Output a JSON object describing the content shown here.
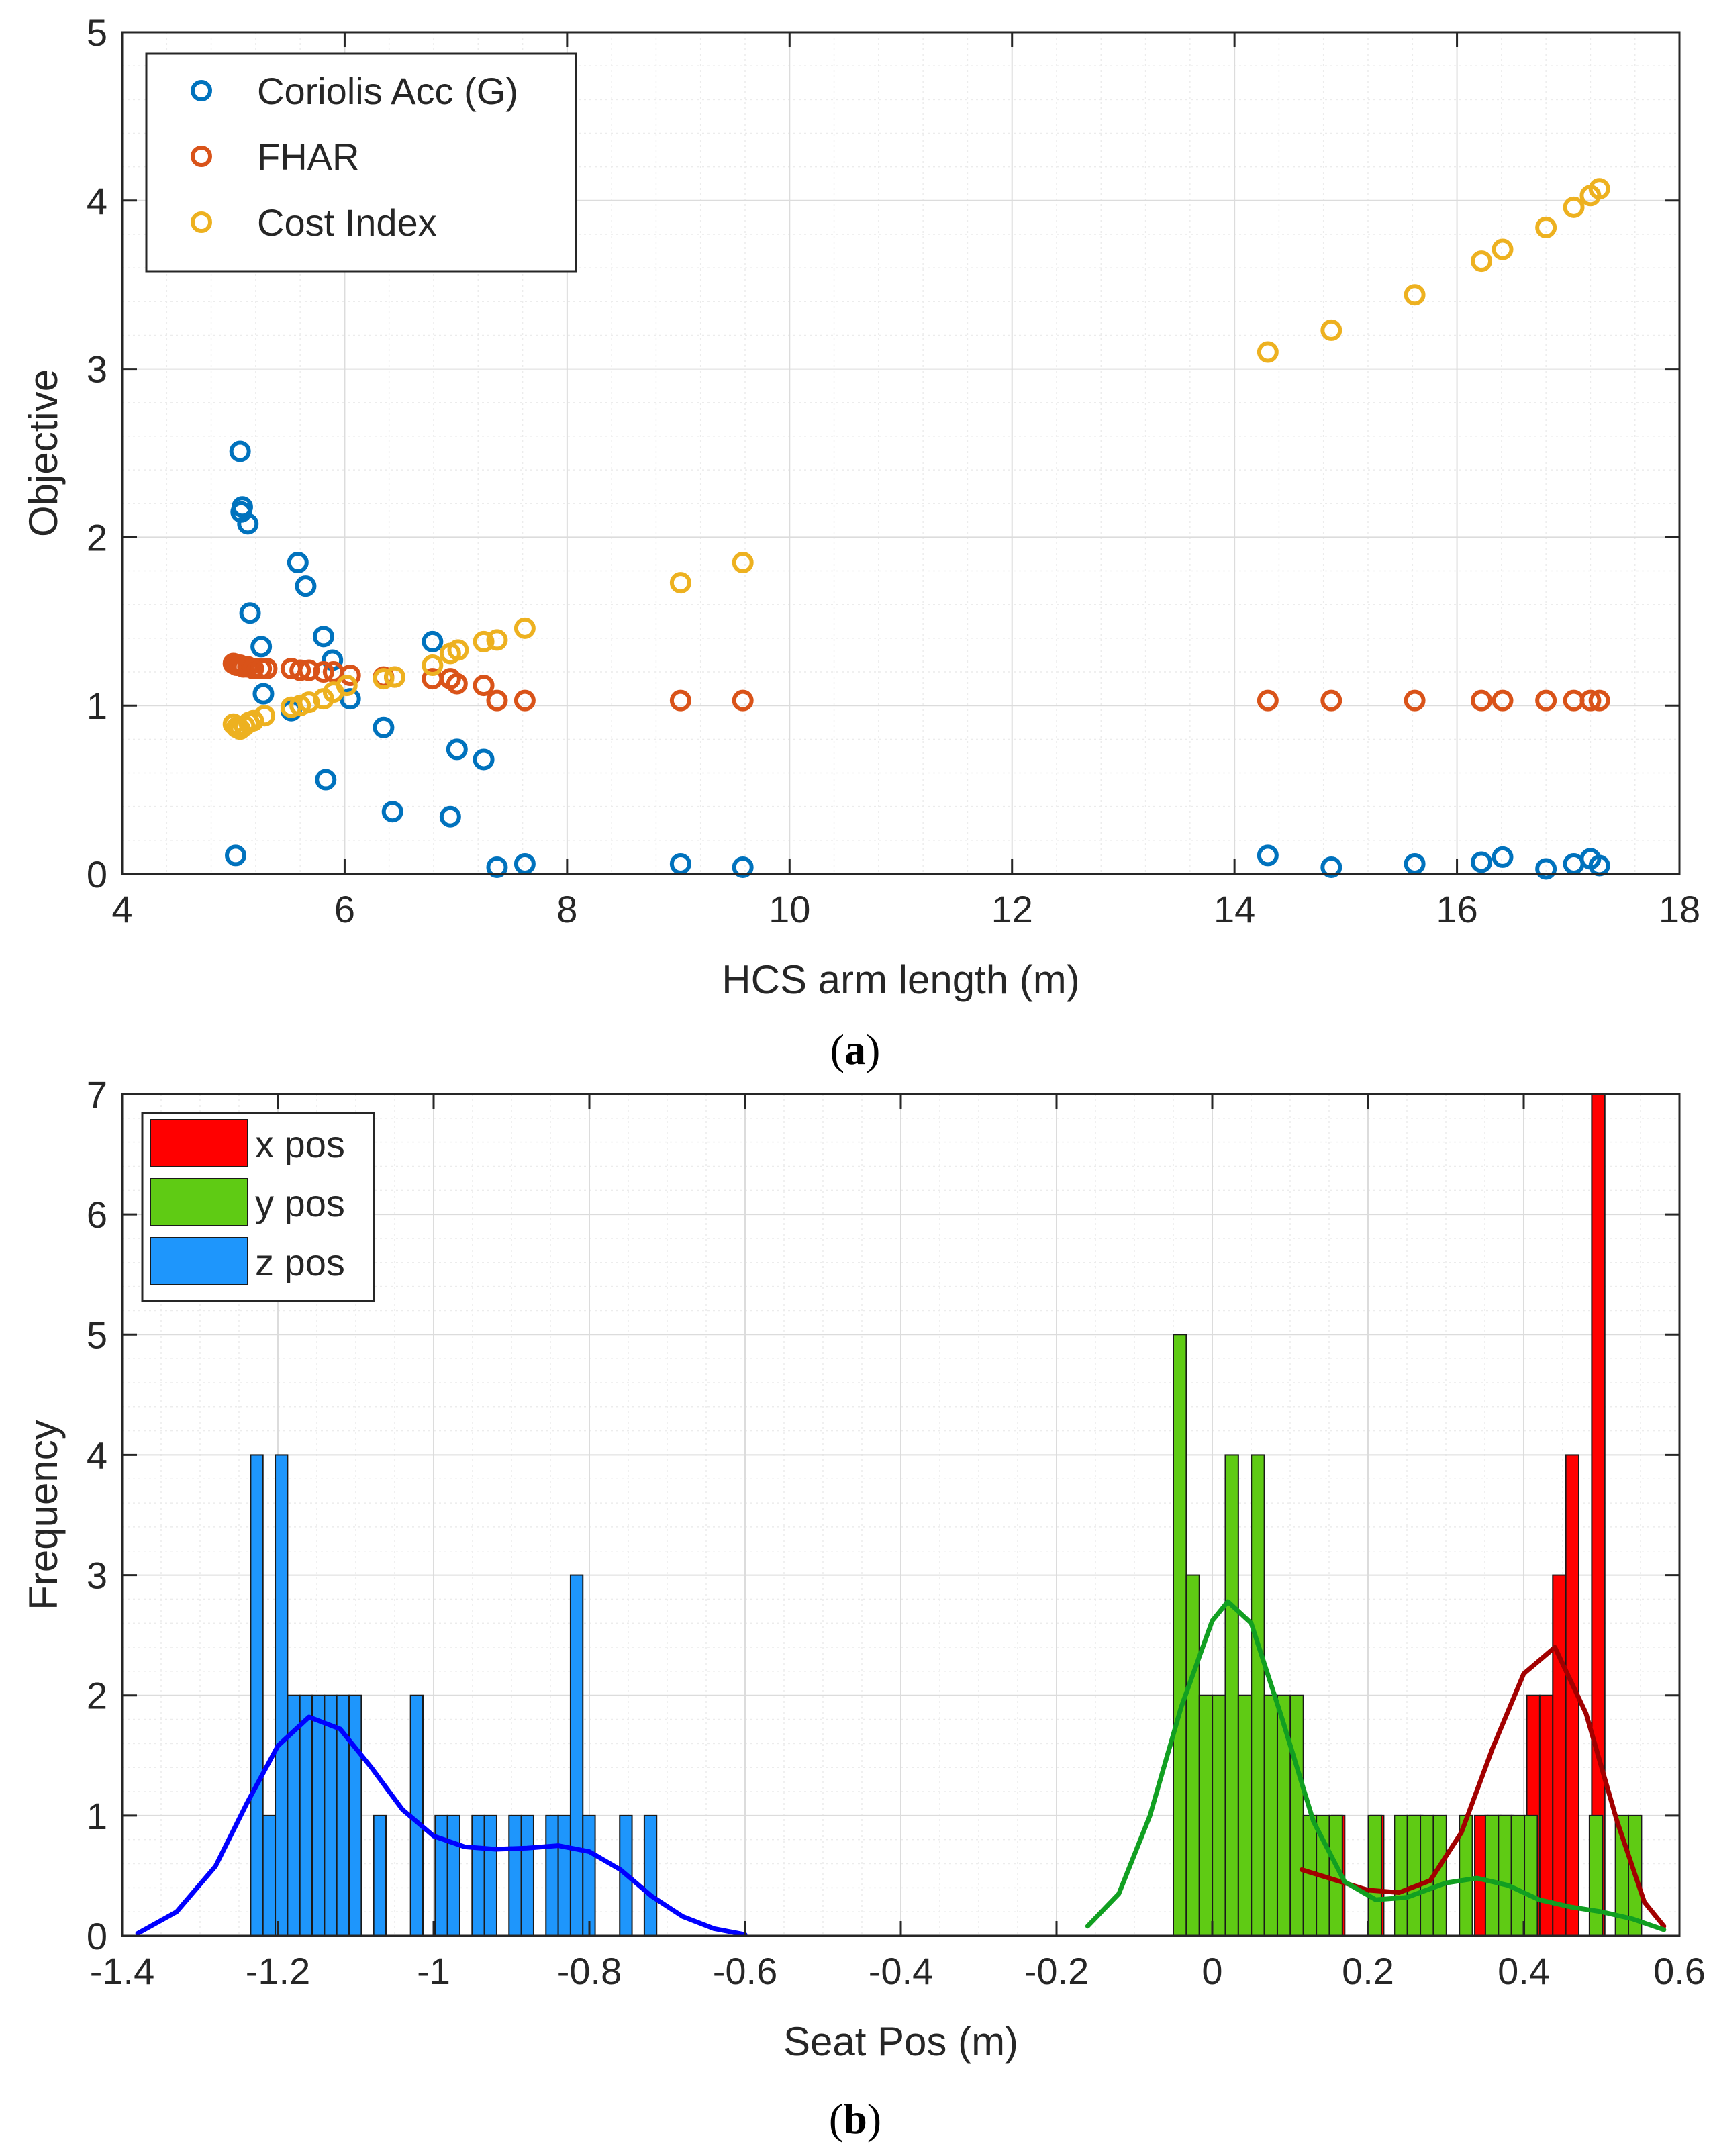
{
  "chart_data": [
    {
      "panel": "a",
      "type": "scatter",
      "xlabel": "HCS arm length (m)",
      "ylabel": "Objective",
      "xlim": [
        4,
        18
      ],
      "ylim": [
        0,
        5
      ],
      "xticks": [
        4,
        6,
        8,
        10,
        12,
        14,
        16,
        18
      ],
      "yticks": [
        0,
        1,
        2,
        3,
        4,
        5
      ],
      "grid": "major and minor",
      "legend_position": "top-left",
      "series": [
        {
          "name": "Coriolis Acc (G)",
          "color": "#0072BD",
          "points": [
            [
              5.02,
              0.11
            ],
            [
              5.06,
              2.51
            ],
            [
              5.08,
              2.18
            ],
            [
              5.07,
              2.15
            ],
            [
              5.13,
              2.08
            ],
            [
              5.15,
              1.55
            ],
            [
              5.25,
              1.35
            ],
            [
              5.27,
              1.07
            ],
            [
              5.52,
              0.97
            ],
            [
              5.58,
              1.85
            ],
            [
              5.65,
              1.71
            ],
            [
              5.81,
              1.41
            ],
            [
              5.83,
              0.56
            ],
            [
              5.89,
              1.27
            ],
            [
              6.05,
              1.04
            ],
            [
              6.35,
              0.87
            ],
            [
              6.43,
              0.37
            ],
            [
              6.79,
              1.38
            ],
            [
              6.95,
              0.34
            ],
            [
              7.01,
              0.74
            ],
            [
              7.25,
              0.68
            ],
            [
              7.37,
              0.04
            ],
            [
              7.62,
              0.06
            ],
            [
              9.02,
              0.06
            ],
            [
              9.58,
              0.04
            ],
            [
              14.3,
              0.11
            ],
            [
              14.87,
              0.04
            ],
            [
              15.62,
              0.06
            ],
            [
              16.22,
              0.07
            ],
            [
              16.41,
              0.1
            ],
            [
              16.8,
              0.03
            ],
            [
              17.05,
              0.06
            ],
            [
              17.2,
              0.09
            ],
            [
              17.28,
              0.05
            ]
          ]
        },
        {
          "name": "FHAR",
          "color": "#D95319",
          "points": [
            [
              5.0,
              1.25
            ],
            [
              5.03,
              1.24
            ],
            [
              5.06,
              1.24
            ],
            [
              5.09,
              1.23
            ],
            [
              5.13,
              1.23
            ],
            [
              5.18,
              1.22
            ],
            [
              5.25,
              1.22
            ],
            [
              5.3,
              1.22
            ],
            [
              5.52,
              1.22
            ],
            [
              5.6,
              1.21
            ],
            [
              5.68,
              1.21
            ],
            [
              5.81,
              1.2
            ],
            [
              5.9,
              1.2
            ],
            [
              6.05,
              1.18
            ],
            [
              6.35,
              1.17
            ],
            [
              6.45,
              1.17
            ],
            [
              6.79,
              1.16
            ],
            [
              6.95,
              1.16
            ],
            [
              7.01,
              1.13
            ],
            [
              7.25,
              1.12
            ],
            [
              7.37,
              1.03
            ],
            [
              7.62,
              1.03
            ],
            [
              9.02,
              1.03
            ],
            [
              9.58,
              1.03
            ],
            [
              14.3,
              1.03
            ],
            [
              14.87,
              1.03
            ],
            [
              15.62,
              1.03
            ],
            [
              16.22,
              1.03
            ],
            [
              16.41,
              1.03
            ],
            [
              16.8,
              1.03
            ],
            [
              17.05,
              1.03
            ],
            [
              17.2,
              1.03
            ],
            [
              17.28,
              1.03
            ]
          ]
        },
        {
          "name": "Cost Index",
          "color": "#EDB120",
          "points": [
            [
              5.0,
              0.89
            ],
            [
              5.03,
              0.87
            ],
            [
              5.06,
              0.86
            ],
            [
              5.1,
              0.88
            ],
            [
              5.14,
              0.9
            ],
            [
              5.18,
              0.91
            ],
            [
              5.28,
              0.94
            ],
            [
              5.52,
              0.99
            ],
            [
              5.6,
              1.0
            ],
            [
              5.68,
              1.02
            ],
            [
              5.81,
              1.04
            ],
            [
              5.9,
              1.08
            ],
            [
              6.02,
              1.12
            ],
            [
              6.35,
              1.16
            ],
            [
              6.45,
              1.17
            ],
            [
              6.79,
              1.24
            ],
            [
              6.95,
              1.31
            ],
            [
              7.02,
              1.33
            ],
            [
              7.25,
              1.38
            ],
            [
              7.37,
              1.39
            ],
            [
              7.62,
              1.46
            ],
            [
              9.02,
              1.73
            ],
            [
              9.58,
              1.85
            ],
            [
              14.3,
              3.1
            ],
            [
              14.87,
              3.23
            ],
            [
              15.62,
              3.44
            ],
            [
              16.22,
              3.64
            ],
            [
              16.41,
              3.71
            ],
            [
              16.8,
              3.84
            ],
            [
              17.05,
              3.96
            ],
            [
              17.2,
              4.03
            ],
            [
              17.28,
              4.07
            ]
          ]
        }
      ],
      "caption": "(a)"
    },
    {
      "panel": "b",
      "type": "bar",
      "subtype": "histogram with density curves",
      "xlabel": "Seat Pos (m)",
      "ylabel": "Frequency",
      "xlim": [
        -1.4,
        0.6
      ],
      "ylim": [
        0,
        7
      ],
      "xticks": [
        -1.4,
        -1.2,
        -1.0,
        -0.8,
        -0.6,
        -0.4,
        -0.2,
        0,
        0.2,
        0.4,
        0.6
      ],
      "xtick_labels": [
        "-1.4",
        "-1.2",
        "-1",
        "-0.8",
        "-0.6",
        "-0.4",
        "-0.2",
        "0",
        "0.2",
        "0.4",
        "0.6"
      ],
      "yticks": [
        0,
        1,
        2,
        3,
        4,
        5,
        6,
        7
      ],
      "grid": "major and minor",
      "legend_position": "top-left",
      "series": [
        {
          "name": "x pos",
          "color": "#FF0000",
          "curve_color": "#A20000",
          "bin_start": 0.12,
          "bin_width": 0.0167,
          "counts": [
            0,
            0,
            1,
            0,
            0,
            1,
            0,
            0,
            1,
            0,
            0,
            0,
            0,
            1,
            1,
            1,
            0,
            2,
            2,
            3,
            4,
            0,
            7
          ],
          "density_curve": [
            [
              0.115,
              0.55
            ],
            [
              0.15,
              0.48
            ],
            [
              0.2,
              0.38
            ],
            [
              0.24,
              0.36
            ],
            [
              0.28,
              0.46
            ],
            [
              0.32,
              0.86
            ],
            [
              0.36,
              1.56
            ],
            [
              0.4,
              2.18
            ],
            [
              0.44,
              2.4
            ],
            [
              0.48,
              1.85
            ],
            [
              0.52,
              0.95
            ],
            [
              0.555,
              0.28
            ],
            [
              0.58,
              0.08
            ]
          ]
        },
        {
          "name": "y pos",
          "color": "#5FCB14",
          "curve_color": "#119F21",
          "bin_start": -0.05,
          "bin_width": 0.0167,
          "counts": [
            5,
            3,
            2,
            2,
            4,
            2,
            4,
            2,
            2,
            2,
            1,
            1,
            1,
            0,
            0,
            1,
            0,
            1,
            1,
            1,
            1,
            0,
            1,
            0,
            1,
            1,
            1,
            1,
            0,
            0,
            0,
            0,
            1,
            0,
            1,
            1
          ],
          "density_curve": [
            [
              -0.16,
              0.08
            ],
            [
              -0.12,
              0.35
            ],
            [
              -0.08,
              1.0
            ],
            [
              -0.04,
              1.9
            ],
            [
              0.0,
              2.62
            ],
            [
              0.02,
              2.78
            ],
            [
              0.05,
              2.6
            ],
            [
              0.09,
              1.8
            ],
            [
              0.13,
              0.95
            ],
            [
              0.17,
              0.45
            ],
            [
              0.21,
              0.3
            ],
            [
              0.25,
              0.32
            ],
            [
              0.3,
              0.44
            ],
            [
              0.34,
              0.48
            ],
            [
              0.38,
              0.42
            ],
            [
              0.42,
              0.3
            ],
            [
              0.46,
              0.24
            ],
            [
              0.5,
              0.2
            ],
            [
              0.54,
              0.14
            ],
            [
              0.58,
              0.05
            ]
          ]
        },
        {
          "name": "z pos",
          "color": "#1E96FC",
          "curve_color": "#0000FF",
          "bin_start": -1.235,
          "bin_width": 0.0158,
          "counts": [
            4,
            1,
            4,
            2,
            2,
            2,
            2,
            2,
            2,
            0,
            1,
            0,
            0,
            2,
            0,
            1,
            1,
            0,
            1,
            1,
            0,
            1,
            1,
            0,
            1,
            1,
            3,
            1,
            0,
            0,
            1,
            0,
            1,
            0,
            0,
            0,
            0
          ],
          "density_curve": [
            [
              -1.38,
              0.02
            ],
            [
              -1.33,
              0.2
            ],
            [
              -1.28,
              0.58
            ],
            [
              -1.24,
              1.1
            ],
            [
              -1.2,
              1.58
            ],
            [
              -1.16,
              1.82
            ],
            [
              -1.12,
              1.72
            ],
            [
              -1.08,
              1.4
            ],
            [
              -1.04,
              1.05
            ],
            [
              -1.0,
              0.83
            ],
            [
              -0.96,
              0.74
            ],
            [
              -0.92,
              0.72
            ],
            [
              -0.88,
              0.73
            ],
            [
              -0.84,
              0.75
            ],
            [
              -0.8,
              0.7
            ],
            [
              -0.76,
              0.55
            ],
            [
              -0.72,
              0.33
            ],
            [
              -0.68,
              0.16
            ],
            [
              -0.64,
              0.06
            ],
            [
              -0.6,
              0.01
            ]
          ]
        }
      ],
      "caption": "(b)"
    }
  ]
}
